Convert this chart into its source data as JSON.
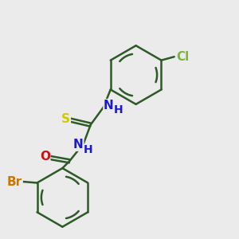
{
  "background_color": "#ebebeb",
  "bond_color": "#2d5a27",
  "bond_width": 1.8,
  "atom_colors": {
    "Br": "#cc7700",
    "Cl": "#7ab63a",
    "N": "#1a1acc",
    "O": "#cc1111",
    "S": "#cccc00",
    "H": "#1a1acc"
  },
  "font_size": 11,
  "fig_size": [
    3.0,
    3.0
  ],
  "dpi": 100
}
